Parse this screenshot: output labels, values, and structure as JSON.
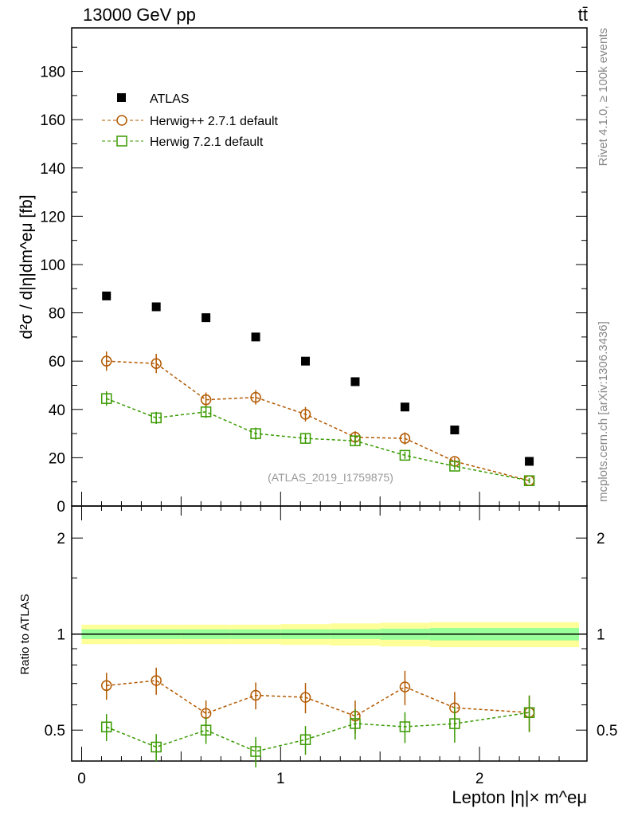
{
  "header": {
    "left": "13000 GeV pp",
    "right": "tt̄"
  },
  "side": {
    "rivet": "Rivet 4.1.0, ≥ 100k events",
    "mcplots": "mcplots.cern.ch [arXiv:1306.3436]"
  },
  "watermark": "(ATLAS_2019_I1759875)",
  "chart_data": [
    {
      "type": "scatter",
      "ylabel": "d²σ / d|η|dm^eμ [fb]",
      "xlim": [
        -0.05,
        2.54
      ],
      "ylim": [
        0,
        198
      ],
      "yticks": [
        0,
        20,
        40,
        60,
        80,
        100,
        120,
        140,
        160,
        180
      ],
      "bins": [
        [
          0,
          0.25
        ],
        [
          0.25,
          0.5
        ],
        [
          0.5,
          0.75
        ],
        [
          0.75,
          1
        ],
        [
          1,
          1.25
        ],
        [
          1.25,
          1.5
        ],
        [
          1.5,
          1.75
        ],
        [
          1.75,
          2
        ],
        [
          2,
          2.5
        ]
      ],
      "x": [
        0.125,
        0.375,
        0.625,
        0.875,
        1.125,
        1.375,
        1.625,
        1.875,
        2.25
      ],
      "series": [
        {
          "name": "ATLAS",
          "color": "#000000",
          "marker": "filled-square",
          "values": [
            87,
            82.5,
            78,
            70,
            60,
            51.5,
            41,
            31.5,
            18.5
          ],
          "rel_err_total": [
            0.07,
            0.07,
            0.07,
            0.07,
            0.075,
            0.08,
            0.085,
            0.09,
            0.09
          ],
          "rel_err_stat": [
            0.035,
            0.035,
            0.035,
            0.035,
            0.035,
            0.035,
            0.04,
            0.045,
            0.045
          ]
        },
        {
          "name": "Herwig++ 2.7.1 default",
          "color": "#b35900",
          "marker": "open-circle",
          "values": [
            60,
            59,
            44,
            45,
            38,
            28.5,
            28,
            18.5,
            10.5
          ],
          "errors": [
            4,
            4,
            3,
            3,
            3,
            2.5,
            2.5,
            1.5,
            1
          ]
        },
        {
          "name": "Herwig 7.2.1 default",
          "color": "#3a9a00",
          "marker": "open-square",
          "values": [
            44.5,
            36.5,
            39,
            30,
            28,
            27,
            21,
            16.5,
            10.5
          ],
          "errors": [
            3,
            2.5,
            2.5,
            2.5,
            2,
            2,
            1.5,
            1.5,
            1
          ]
        }
      ]
    },
    {
      "type": "scatter",
      "ylabel": "Ratio to ATLAS",
      "xlabel": "Lepton |η|× m^eμ",
      "yscale": "log",
      "ylim": [
        0.4,
        2.52
      ],
      "yticks": [
        "0.5",
        "1",
        "2"
      ],
      "xticks": [
        "0",
        "1",
        "2"
      ]
    }
  ]
}
